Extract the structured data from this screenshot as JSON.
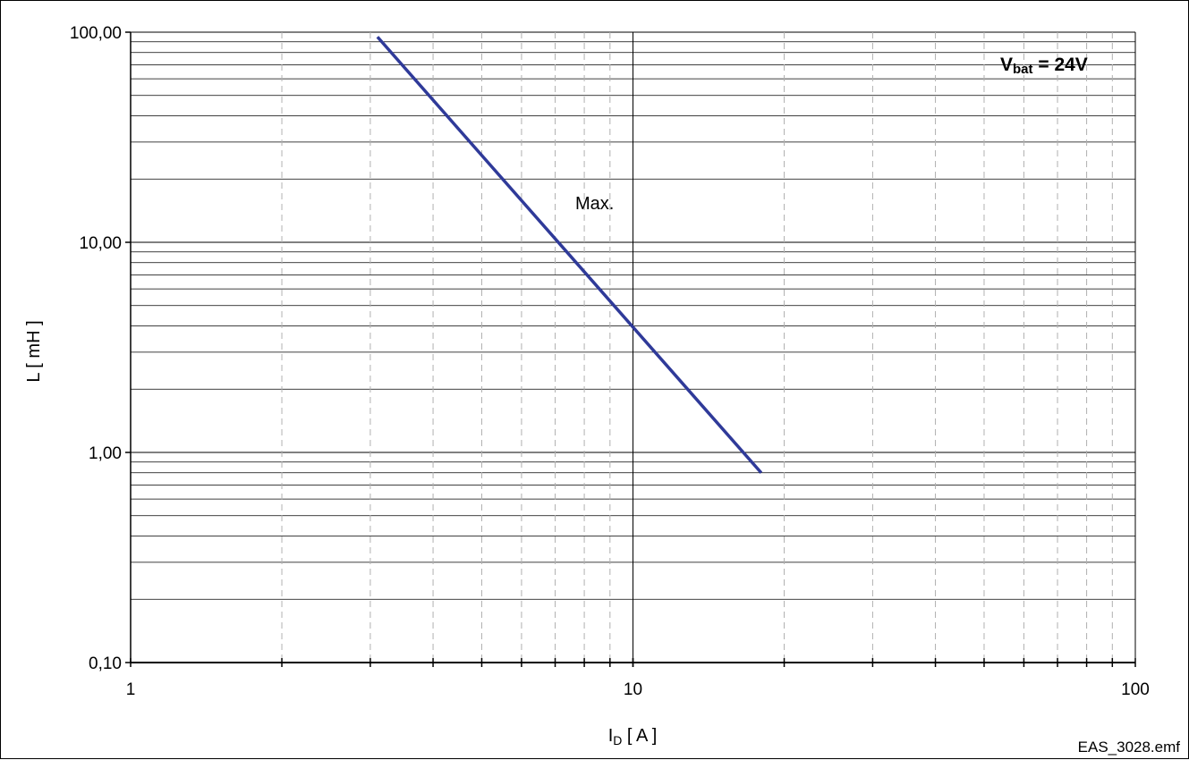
{
  "chart_data": {
    "type": "line",
    "x_scale": "log",
    "y_scale": "log",
    "xlim": [
      1,
      100
    ],
    "ylim": [
      0.1,
      100
    ],
    "x_ticks": [
      "1",
      "10",
      "100"
    ],
    "y_ticks": [
      "0,10",
      "1,00",
      "10,00",
      "100,00"
    ],
    "ylabel": "L [ mH ]",
    "xlabel": {
      "main": "I",
      "sub": "D",
      "unit": " [ A ]"
    },
    "grid": {
      "x_major": "solid",
      "x_minor": "dashed",
      "y_major": "solid",
      "y_minor": "solid"
    },
    "series": [
      {
        "color": "#2f3a99",
        "x": [
          3.1,
          18.0
        ],
        "y": [
          95,
          0.8
        ]
      }
    ],
    "annotations": {
      "series_label": "Max.",
      "vbat": {
        "main": "V",
        "sub": "bat",
        "rest": " = 24V"
      }
    },
    "legend": "none"
  },
  "footer": "EAS_3028.emf"
}
